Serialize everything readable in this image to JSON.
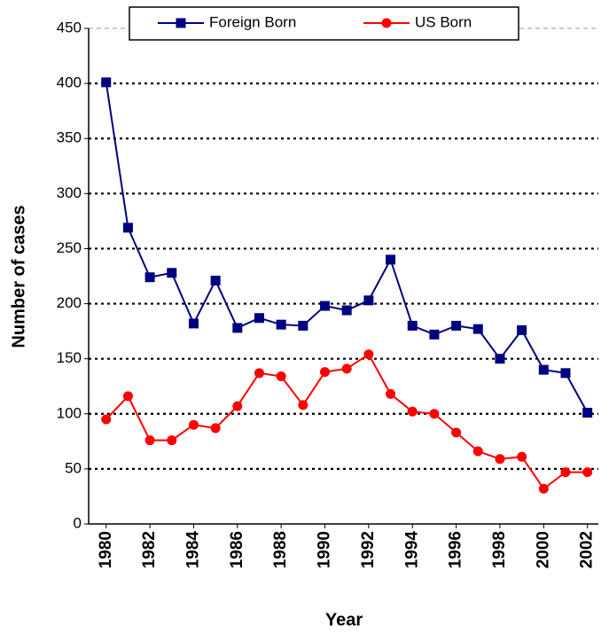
{
  "chart_data": {
    "type": "line",
    "x": [
      1980,
      1981,
      1982,
      1983,
      1984,
      1985,
      1986,
      1987,
      1988,
      1989,
      1990,
      1991,
      1992,
      1993,
      1994,
      1995,
      1996,
      1997,
      1998,
      1999,
      2000,
      2001,
      2002
    ],
    "series": [
      {
        "name": "Foreign Born",
        "color": "#000080",
        "marker": "square",
        "values": [
          401,
          269,
          224,
          228,
          182,
          221,
          178,
          187,
          181,
          180,
          198,
          194,
          203,
          240,
          180,
          172,
          180,
          177,
          150,
          176,
          140,
          137,
          101
        ]
      },
      {
        "name": "US Born",
        "color": "#ff0000",
        "marker": "circle",
        "values": [
          95,
          116,
          76,
          76,
          90,
          87,
          107,
          137,
          134,
          108,
          138,
          141,
          154,
          118,
          102,
          100,
          83,
          66,
          59,
          61,
          32,
          47,
          47
        ]
      }
    ],
    "xlabel": "Year",
    "ylabel": "Number of cases",
    "xlim": [
      1979.2,
      2002.5
    ],
    "xticks": [
      1980,
      1982,
      1984,
      1986,
      1988,
      1990,
      1992,
      1994,
      1996,
      1998,
      2000,
      2002
    ],
    "ylim": [
      0,
      450
    ],
    "yticks": [
      0,
      50,
      100,
      150,
      200,
      250,
      300,
      350,
      400,
      450
    ],
    "grid": true,
    "legend": "top"
  }
}
